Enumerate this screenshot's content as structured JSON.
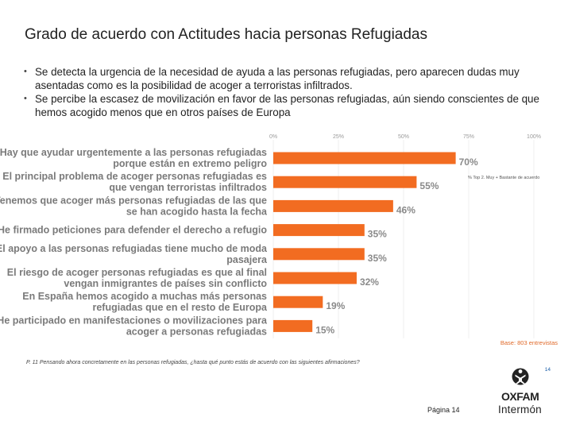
{
  "page": {
    "title": "Grado de acuerdo con Actitudes hacia personas Refugiadas",
    "bullets": [
      "Se detecta la urgencia de la necesidad de ayuda a las personas refugiadas, pero aparecen dudas muy asentadas como es la posibilidad de acoger a terroristas infiltrados.",
      "Se percibe la escasez de movilización en favor de las personas refugiadas, aún siendo conscientes de que hemos acogido menos que en otros países de Europa"
    ],
    "legend_note": "% Top 2. Muy + Bastante de acuerdo",
    "base_note": "Base: 803 entrevistas",
    "question_note": "P. 11 Pensando ahora concretamente en las personas refugiadas, ¿hasta qué punto estás de acuerdo con las siguientes afirmaciones?",
    "slide_number": "14",
    "footer": "Página 14",
    "logo": {
      "line1": "OXFAM",
      "line2": "Intermón",
      "icon": "oxfam-figure-icon"
    }
  },
  "chart_data": {
    "type": "bar",
    "orientation": "horizontal",
    "xlim": [
      0,
      100
    ],
    "ticks": [
      "0%",
      "25%",
      "50%",
      "75%",
      "100%"
    ],
    "bar_color": "#f26c21",
    "categories": [
      [
        "Hay que ayudar urgentemente a las personas refugiadas",
        "porque están en extremo peligro"
      ],
      [
        "El principal problema de acoger personas refugiadas es",
        "que vengan terroristas infiltrados"
      ],
      [
        "Tenemos que acoger más personas refugiadas de las que",
        "se han acogido hasta la fecha"
      ],
      [
        "He firmado peticiones para defender el derecho a refugio"
      ],
      [
        "El apoyo a las personas refugiadas tiene mucho de moda",
        "pasajera"
      ],
      [
        "El riesgo de acoger personas refugiadas es que al final",
        "vengan inmigrantes de países sin conflicto"
      ],
      [
        "En España hemos acogido a muchas más personas",
        "refugiadas que en el resto de Europa"
      ],
      [
        "He participado en manifestaciones o movilizaciones para",
        "acoger a personas refugiadas"
      ]
    ],
    "values": [
      70,
      55,
      46,
      35,
      35,
      32,
      19,
      15
    ],
    "value_labels": [
      "70%",
      "55%",
      "46%",
      "35%",
      "35%",
      "32%",
      "19%",
      "15%"
    ]
  }
}
